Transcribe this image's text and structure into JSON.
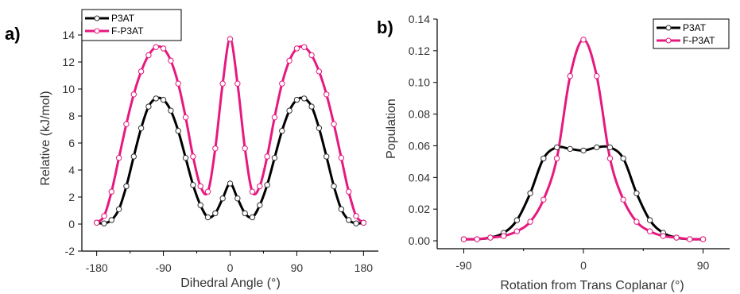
{
  "chart_data": [
    {
      "panel": "a)",
      "type": "line",
      "xlabel": "Dihedral Angle (°)",
      "ylabel": "Relative (kJ/mol)",
      "xlim": [
        -200,
        200
      ],
      "ylim": [
        -2,
        15
      ],
      "xticks": [
        -180,
        -90,
        0,
        90,
        180
      ],
      "xtick_labels": [
        "-180",
        "-90",
        "0",
        "90",
        "180"
      ],
      "yticks": [
        -2,
        0,
        2,
        4,
        6,
        8,
        10,
        12,
        14
      ],
      "ytick_labels": [
        "-2",
        "0",
        "2",
        "4",
        "6",
        "8",
        "10",
        "12",
        "14"
      ],
      "legend": "top-left",
      "series": [
        {
          "name": "P3AT",
          "color": "#000000",
          "marker": "open-circle",
          "x": [
            -180,
            -170,
            -160,
            -150,
            -140,
            -130,
            -120,
            -110,
            -100,
            -90,
            -80,
            -70,
            -60,
            -50,
            -40,
            -30,
            -20,
            -10,
            0,
            10,
            20,
            30,
            40,
            50,
            60,
            70,
            80,
            90,
            100,
            110,
            120,
            130,
            140,
            150,
            160,
            170,
            180
          ],
          "y": [
            0.1,
            0.05,
            0.3,
            1.1,
            2.8,
            5.0,
            7.1,
            8.7,
            9.3,
            9.2,
            8.4,
            6.9,
            4.9,
            2.9,
            1.4,
            0.5,
            0.8,
            1.9,
            3.0,
            1.9,
            0.8,
            0.5,
            1.4,
            2.9,
            4.9,
            6.9,
            8.4,
            9.2,
            9.3,
            8.7,
            7.1,
            5.0,
            2.8,
            1.1,
            0.3,
            0.05,
            0.1
          ]
        },
        {
          "name": "F-P3AT",
          "color": "#e6197f",
          "marker": "open-circle",
          "x": [
            -180,
            -170,
            -160,
            -150,
            -140,
            -130,
            -120,
            -110,
            -100,
            -90,
            -80,
            -70,
            -60,
            -50,
            -40,
            -30,
            -20,
            -10,
            0,
            10,
            20,
            30,
            40,
            50,
            60,
            70,
            80,
            90,
            100,
            110,
            120,
            130,
            140,
            150,
            160,
            170,
            180
          ],
          "y": [
            0.1,
            0.6,
            2.4,
            4.9,
            7.4,
            9.6,
            11.3,
            12.5,
            13.1,
            13.0,
            12.1,
            10.4,
            7.9,
            5.0,
            2.8,
            2.4,
            5.6,
            10.4,
            13.7,
            10.4,
            5.6,
            2.4,
            2.8,
            5.0,
            7.9,
            10.4,
            12.1,
            13.0,
            13.1,
            12.5,
            11.3,
            9.6,
            7.4,
            4.9,
            2.4,
            0.6,
            0.1
          ]
        }
      ]
    },
    {
      "panel": "b)",
      "type": "line",
      "xlabel": "Rotation from Trans Coplanar (°)",
      "ylabel": "Population",
      "xlim": [
        -110,
        110
      ],
      "ylim": [
        -0.005,
        0.14
      ],
      "xticks": [
        -90,
        0,
        90
      ],
      "xtick_labels": [
        "-90",
        "0",
        "90"
      ],
      "yticks": [
        0.0,
        0.02,
        0.04,
        0.06,
        0.08,
        0.1,
        0.12,
        0.14
      ],
      "ytick_labels": [
        "0.00",
        "0.02",
        "0.04",
        "0.06",
        "0.08",
        "0.10",
        "0.12",
        "0.14"
      ],
      "legend": "top-right",
      "series": [
        {
          "name": "P3AT",
          "color": "#000000",
          "marker": "open-circle",
          "x": [
            -90,
            -80,
            -70,
            -60,
            -50,
            -40,
            -30,
            -20,
            -10,
            0,
            10,
            20,
            30,
            40,
            50,
            60,
            70,
            80,
            90
          ],
          "y": [
            0.001,
            0.001,
            0.002,
            0.005,
            0.013,
            0.03,
            0.052,
            0.059,
            0.058,
            0.057,
            0.059,
            0.059,
            0.052,
            0.03,
            0.013,
            0.005,
            0.002,
            0.001,
            0.001
          ]
        },
        {
          "name": "F-P3AT",
          "color": "#e6197f",
          "marker": "open-circle",
          "x": [
            -90,
            -80,
            -70,
            -60,
            -50,
            -40,
            -30,
            -20,
            -10,
            0,
            10,
            20,
            30,
            40,
            50,
            60,
            70,
            80,
            90
          ],
          "y": [
            0.001,
            0.001,
            0.002,
            0.003,
            0.006,
            0.012,
            0.026,
            0.052,
            0.104,
            0.127,
            0.104,
            0.052,
            0.026,
            0.012,
            0.006,
            0.003,
            0.002,
            0.001,
            0.001
          ]
        }
      ]
    }
  ]
}
